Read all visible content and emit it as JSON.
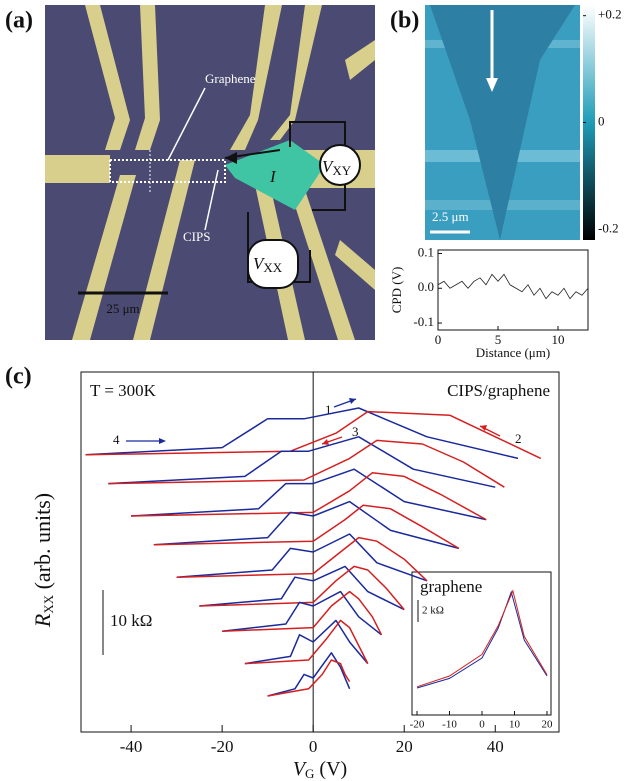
{
  "panel_a": {
    "label": "(a)",
    "graphene": "Graphene",
    "cips": "CIPS",
    "current": "I",
    "vxy": [
      "V",
      "XY"
    ],
    "vxx": [
      "V",
      "XX"
    ],
    "scale": "25 μm"
  },
  "panel_b": {
    "label": "(b)",
    "scale": "2.5 μm",
    "colorbar": {
      "lim": [
        -0.22,
        0.22
      ],
      "ticks": [
        {
          "value": 0.2,
          "label": "+0.2"
        },
        0,
        -0.2
      ]
    },
    "cpd": {
      "ylabel": "CPD (V)",
      "xlabel": "Distance (μm)",
      "xlim": [
        0,
        12.5
      ],
      "ylim": [
        -0.12,
        0.11
      ],
      "xticks": [
        0,
        5,
        10
      ],
      "yticks": [
        0.1,
        {
          "value": 0,
          "label": "0.0"
        },
        -0.1
      ],
      "x": [
        0,
        0.5,
        1,
        1.5,
        2,
        2.5,
        3,
        3.5,
        4,
        4.5,
        5,
        5.5,
        6,
        6.5,
        7,
        7.5,
        8,
        8.5,
        9,
        9.5,
        10,
        10.5,
        11,
        11.5,
        12,
        12.5
      ],
      "values": [
        0.01,
        0.02,
        0.0,
        0.01,
        0.02,
        0.0,
        0.02,
        0.03,
        0.01,
        0.04,
        0.02,
        0.04,
        0.01,
        0.0,
        -0.01,
        0.01,
        -0.02,
        0.0,
        -0.03,
        -0.01,
        -0.02,
        0.0,
        -0.03,
        -0.01,
        -0.02,
        0.0
      ]
    }
  },
  "panel_c": {
    "label": "(c)",
    "temperature": "T = 300K",
    "sample": "CIPS/graphene",
    "ylabel": [
      "R",
      "XX",
      " (arb. units)"
    ],
    "xlabel": [
      "V",
      "G",
      " (V)"
    ],
    "scale": "10 kΩ",
    "sweeps": [
      "1",
      "2",
      "3",
      "4"
    ],
    "xlim": [
      -51,
      54
    ],
    "ylim": [
      0,
      100
    ],
    "xticks": [
      -40,
      -20,
      0,
      20,
      40
    ],
    "series": [
      {
        "color": "#1a2a9c",
        "x": [
          -50,
          -20,
          -10,
          -2,
          10,
          25,
          45
        ],
        "values": [
          77,
          79,
          87,
          87,
          90,
          82,
          76
        ]
      },
      {
        "color": "#d42020",
        "x": [
          -50,
          -5,
          5,
          12,
          30,
          40,
          50
        ],
        "values": [
          77,
          78,
          83,
          89,
          88,
          82,
          76
        ]
      },
      {
        "color": "#1a2a9c",
        "x": [
          -45,
          -15,
          -7,
          -1,
          10,
          22,
          40
        ],
        "values": [
          69,
          71,
          78,
          78,
          82,
          73,
          68
        ]
      },
      {
        "color": "#d42020",
        "x": [
          -45,
          -2,
          8,
          14,
          24,
          33,
          42
        ],
        "values": [
          69,
          70,
          76,
          81,
          80,
          75,
          68
        ]
      },
      {
        "color": "#1a2a9c",
        "x": [
          -40,
          -12,
          -6,
          0,
          9,
          20,
          38
        ],
        "values": [
          60,
          62,
          69,
          69,
          73,
          64,
          59
        ]
      },
      {
        "color": "#d42020",
        "x": [
          -40,
          0,
          8,
          13,
          20,
          28,
          38
        ],
        "values": [
          60,
          61,
          67,
          72,
          71,
          66,
          59
        ]
      },
      {
        "color": "#1a2a9c",
        "x": [
          -35,
          -10,
          -5,
          0,
          8,
          17,
          32
        ],
        "values": [
          52,
          54,
          61,
          60,
          64,
          56,
          51
        ]
      },
      {
        "color": "#d42020",
        "x": [
          -35,
          0,
          7,
          11,
          17,
          24,
          32
        ],
        "values": [
          52,
          53,
          59,
          63,
          62,
          57,
          51
        ]
      },
      {
        "color": "#1a2a9c",
        "x": [
          -30,
          -9,
          -5,
          0,
          8,
          14,
          25
        ],
        "values": [
          43,
          45,
          51,
          50,
          55,
          47,
          42
        ]
      },
      {
        "color": "#d42020",
        "x": [
          -30,
          0,
          6,
          10,
          14,
          20,
          25
        ],
        "values": [
          43,
          44,
          50,
          54,
          53,
          48,
          42
        ]
      },
      {
        "color": "#1a2a9c",
        "x": [
          -25,
          -7,
          -4,
          0,
          7,
          12,
          20
        ],
        "values": [
          35,
          37,
          43,
          42,
          46,
          39,
          34
        ]
      },
      {
        "color": "#d42020",
        "x": [
          -25,
          0,
          5,
          9,
          12,
          16,
          20
        ],
        "values": [
          35,
          36,
          42,
          46,
          45,
          40,
          34
        ]
      },
      {
        "color": "#1a2a9c",
        "x": [
          -20,
          -6,
          -3,
          0,
          6,
          10,
          15
        ],
        "values": [
          28,
          30,
          36,
          35,
          39,
          32,
          27
        ]
      },
      {
        "color": "#d42020",
        "x": [
          -20,
          0,
          4,
          8,
          10,
          13,
          15
        ],
        "values": [
          28,
          29,
          35,
          39,
          37,
          32,
          27
        ]
      },
      {
        "color": "#1a2a9c",
        "x": [
          -15,
          -5,
          -3,
          0,
          5,
          8,
          12
        ],
        "values": [
          19,
          21,
          27,
          25,
          31,
          25,
          19
        ]
      },
      {
        "color": "#d42020",
        "x": [
          -15,
          -1,
          3,
          6,
          8,
          10,
          12
        ],
        "values": [
          19,
          20,
          26,
          31,
          29,
          24,
          19
        ]
      },
      {
        "color": "#1a2a9c",
        "x": [
          -10,
          -4,
          -2,
          0,
          4,
          6,
          8
        ],
        "values": [
          10,
          12,
          16,
          15,
          22,
          18,
          12
        ]
      },
      {
        "color": "#d42020",
        "x": [
          -10,
          -1,
          2,
          4,
          6,
          7,
          8
        ],
        "values": [
          10,
          12,
          16,
          20,
          19,
          16,
          14
        ]
      }
    ],
    "inset": {
      "title": "graphene",
      "scale": "2 kΩ",
      "xlim": [
        -20,
        20
      ],
      "ylim": [
        0,
        10
      ],
      "xticks": [
        -20,
        -10,
        0,
        10,
        20
      ],
      "series": [
        {
          "color": "#1a2a9c",
          "x": [
            -20,
            -10,
            0,
            5,
            9,
            13,
            20
          ],
          "values": [
            1,
            1.8,
            3.5,
            6,
            9,
            5,
            2
          ]
        },
        {
          "color": "#d42020",
          "x": [
            -20,
            -10,
            0,
            5,
            9.5,
            13,
            20
          ],
          "values": [
            1.1,
            2,
            3.8,
            6.2,
            9.1,
            5.3,
            2.1
          ]
        }
      ]
    }
  }
}
